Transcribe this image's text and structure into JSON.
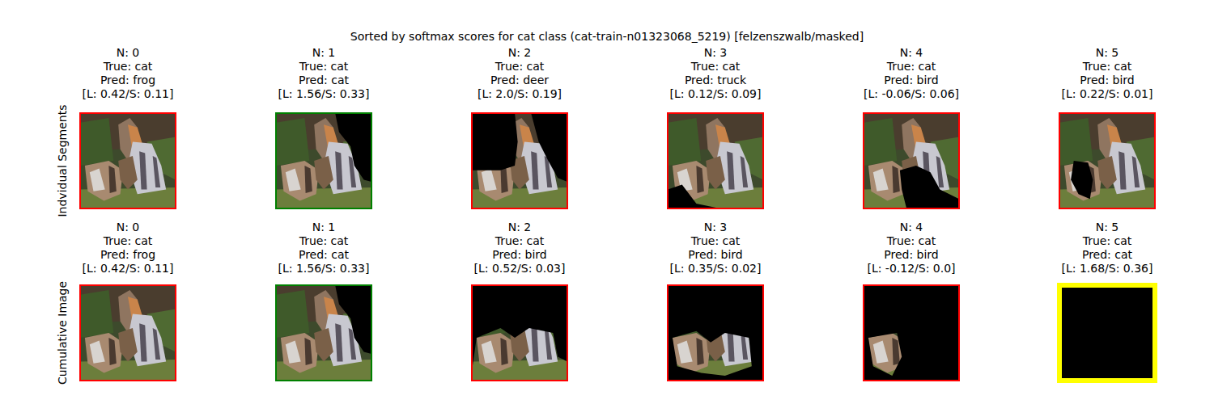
{
  "chart_data": {
    "type": "image_grid",
    "title": "Sorted by softmax scores for cat class (cat-train-n01323068_5219) [felzenszwalb/masked]",
    "rows": [
      {
        "label": "Indvidual Segments",
        "panels": [
          {
            "lines": [
              "N: 0",
              "True: cat",
              "Pred: frog",
              "[L: 0.42/S: 0.11]"
            ],
            "color": "red"
          },
          {
            "lines": [
              "N: 1",
              "True: cat",
              "Pred: cat",
              "[L: 1.56/S: 0.33]"
            ],
            "color": "green"
          },
          {
            "lines": [
              "N: 2",
              "True: cat",
              "Pred: deer",
              "[L: 2.0/S: 0.19]"
            ],
            "color": "red"
          },
          {
            "lines": [
              "N: 3",
              "True: cat",
              "Pred: truck",
              "[L: 0.12/S: 0.09]"
            ],
            "color": "red"
          },
          {
            "lines": [
              "N: 4",
              "True: cat",
              "Pred: bird",
              "[L: -0.06/S: 0.06]"
            ],
            "color": "red"
          },
          {
            "lines": [
              "N: 5",
              "True: cat",
              "Pred: bird",
              "[L: 0.22/S: 0.01]"
            ],
            "color": "red"
          }
        ]
      },
      {
        "label": "Cumulative Image",
        "panels": [
          {
            "lines": [
              "N: 0",
              "True: cat",
              "Pred: frog",
              "[L: 0.42/S: 0.11]"
            ],
            "color": "red"
          },
          {
            "lines": [
              "N: 1",
              "True: cat",
              "Pred: cat",
              "[L: 1.56/S: 0.33]"
            ],
            "color": "green"
          },
          {
            "lines": [
              "N: 2",
              "True: cat",
              "Pred: bird",
              "[L: 0.52/S: 0.03]"
            ],
            "color": "red"
          },
          {
            "lines": [
              "N: 3",
              "True: cat",
              "Pred: bird",
              "[L: 0.35/S: 0.02]"
            ],
            "color": "red"
          },
          {
            "lines": [
              "N: 4",
              "True: cat",
              "Pred: bird",
              "[L: -0.12/S: 0.0]"
            ],
            "color": "red"
          },
          {
            "lines": [
              "N: 5",
              "True: cat",
              "Pred: cat",
              "[L: 1.68/S: 0.36]"
            ],
            "color": "yellow"
          }
        ]
      }
    ]
  }
}
